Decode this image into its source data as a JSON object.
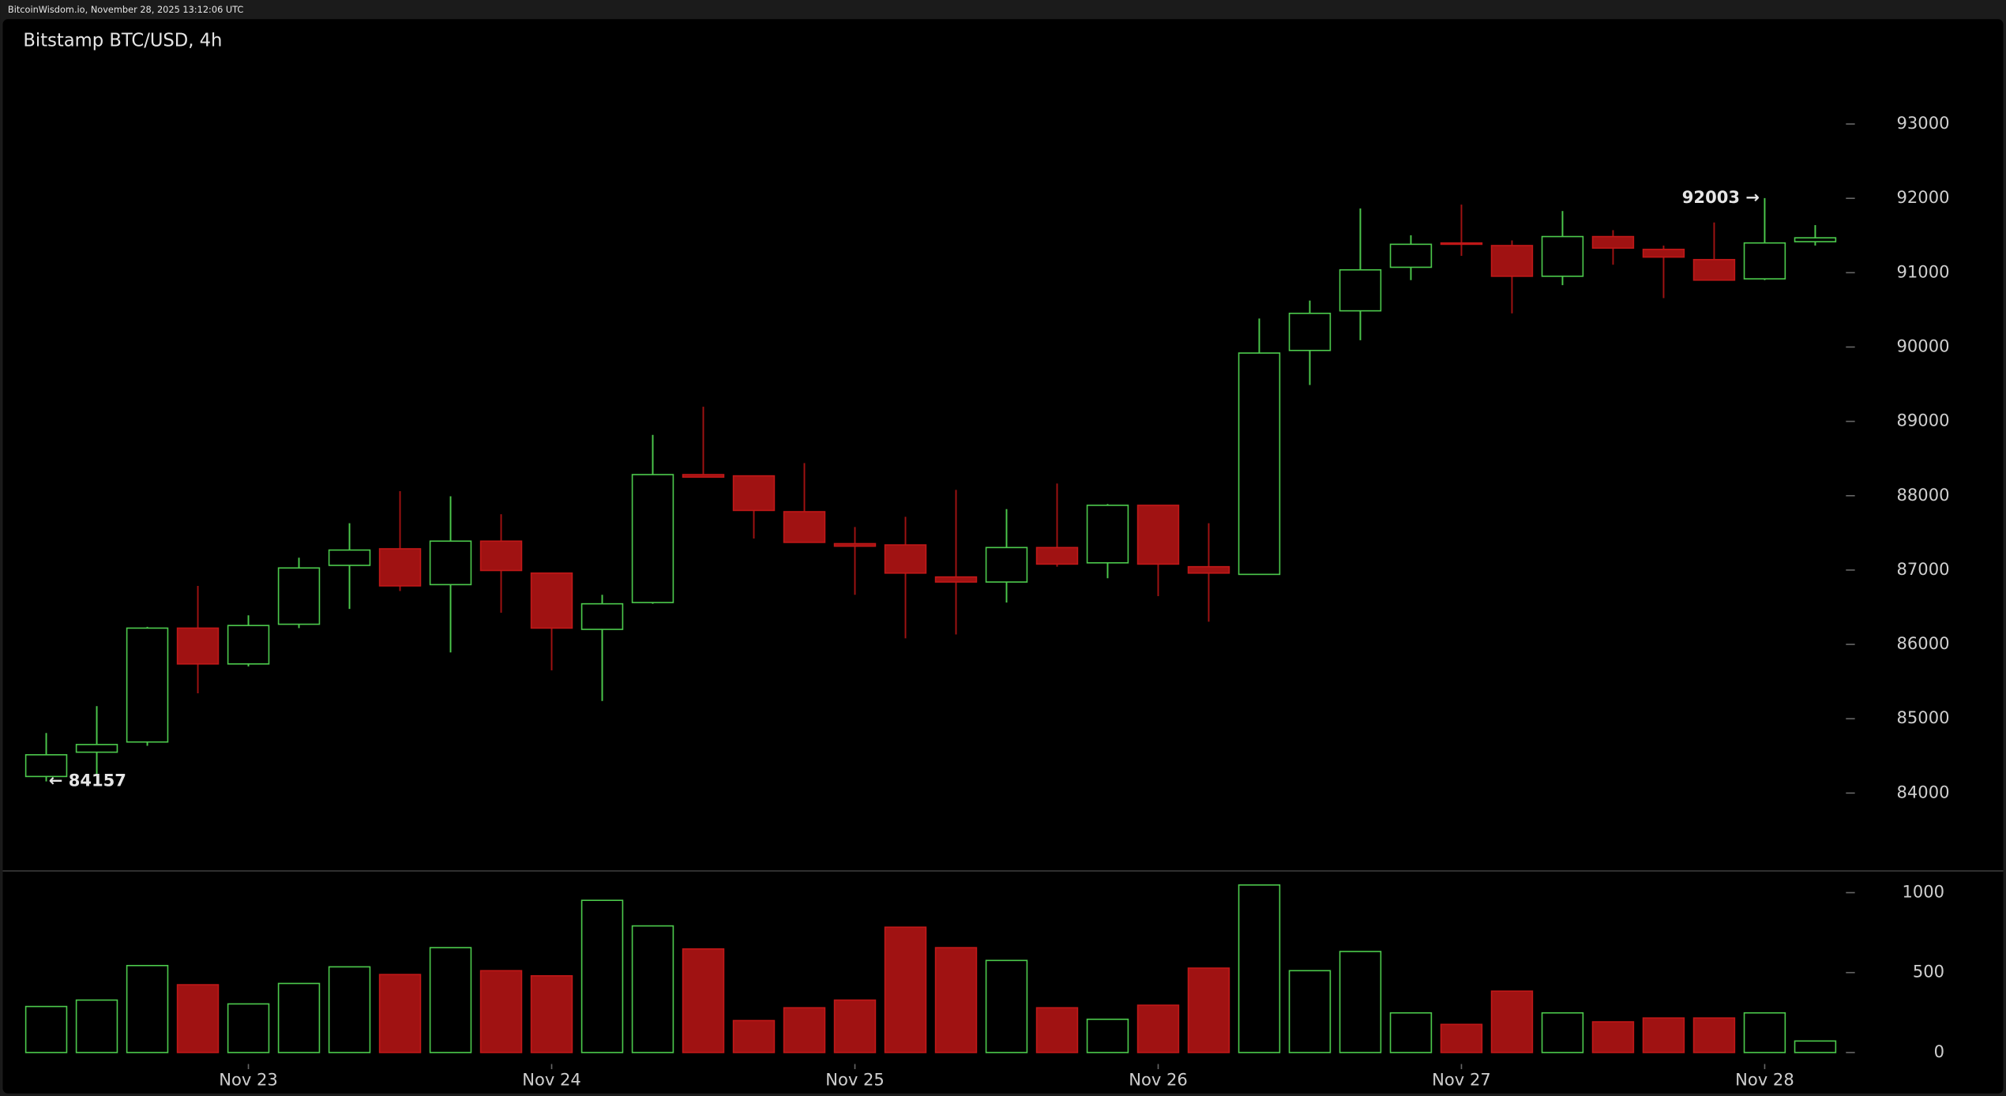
{
  "chart_data": {
    "type": "candlestick",
    "subtitle": "BitcoinWisdom.io, November 28, 2025 13:12:06 UTC",
    "title": "Bitstamp BTC/USD, 4h",
    "categories": [
      null,
      null,
      null,
      null,
      "Nov 23",
      null,
      null,
      null,
      null,
      null,
      "Nov 24",
      null,
      null,
      null,
      null,
      null,
      "Nov 25",
      null,
      null,
      null,
      null,
      null,
      "Nov 26",
      null,
      null,
      null,
      null,
      null,
      "Nov 27",
      null,
      null,
      null,
      null,
      null,
      "Nov 28",
      null
    ],
    "open": [
      84223,
      84550,
      84687,
      86219,
      85737,
      86271,
      87063,
      87286,
      86804,
      87389,
      86959,
      86202,
      86563,
      88284,
      88267,
      87785,
      87355,
      87338,
      86907,
      86839,
      87303,
      87097,
      87871,
      87045,
      86942,
      89954,
      90487,
      91073,
      91400,
      91365,
      90952,
      91486,
      91314,
      91176,
      90917,
      91417
    ],
    "high": [
      84808,
      85170,
      86236,
      86787,
      86391,
      87166,
      87630,
      88061,
      87992,
      87751,
      86959,
      86667,
      88818,
      89197,
      88267,
      88439,
      87579,
      87716,
      88078,
      87820,
      88164,
      87888,
      87871,
      87630,
      90384,
      90625,
      91864,
      91503,
      91916,
      91434,
      91830,
      91572,
      91365,
      91675,
      92003,
      91640
    ],
    "low": [
      84157,
      84240,
      84636,
      85342,
      85703,
      86219,
      86477,
      86718,
      85892,
      86426,
      85651,
      85238,
      86546,
      88250,
      87424,
      87372,
      86667,
      86082,
      86133,
      86563,
      87045,
      86890,
      86649,
      86305,
      86942,
      89489,
      90091,
      90900,
      91227,
      90453,
      90832,
      91107,
      90659,
      90900,
      90900,
      91365
    ],
    "close": [
      84515,
      84653,
      86219,
      85737,
      86254,
      87028,
      87269,
      86787,
      87389,
      86994,
      86219,
      86546,
      88284,
      88250,
      87802,
      87372,
      87321,
      86959,
      86839,
      87303,
      87080,
      87871,
      87080,
      86959,
      89919,
      90453,
      91038,
      91382,
      91382,
      90952,
      91486,
      91331,
      91210,
      90900,
      91400,
      91469
    ],
    "volume": [
      288,
      328,
      544,
      424,
      304,
      432,
      536,
      488,
      656,
      512,
      480,
      952,
      792,
      648,
      200,
      280,
      328,
      784,
      656,
      576,
      280,
      208,
      296,
      528,
      1048,
      512,
      632,
      248,
      176,
      384,
      248,
      192,
      216,
      216,
      248,
      72
    ],
    "up_color": "#4cc94c",
    "down_color": "#a01212",
    "ylim": [
      82970,
      94410
    ],
    "yticks": [
      84000,
      85000,
      86000,
      87000,
      88000,
      89000,
      90000,
      91000,
      92000,
      93000
    ],
    "volume_ylim": [
      0,
      1144
    ],
    "volume_yticks": [
      0,
      500,
      1000
    ],
    "annotations": [
      {
        "label": "92003 →",
        "value": 92003
      },
      {
        "label": "← 84157",
        "value": 84157
      }
    ]
  }
}
